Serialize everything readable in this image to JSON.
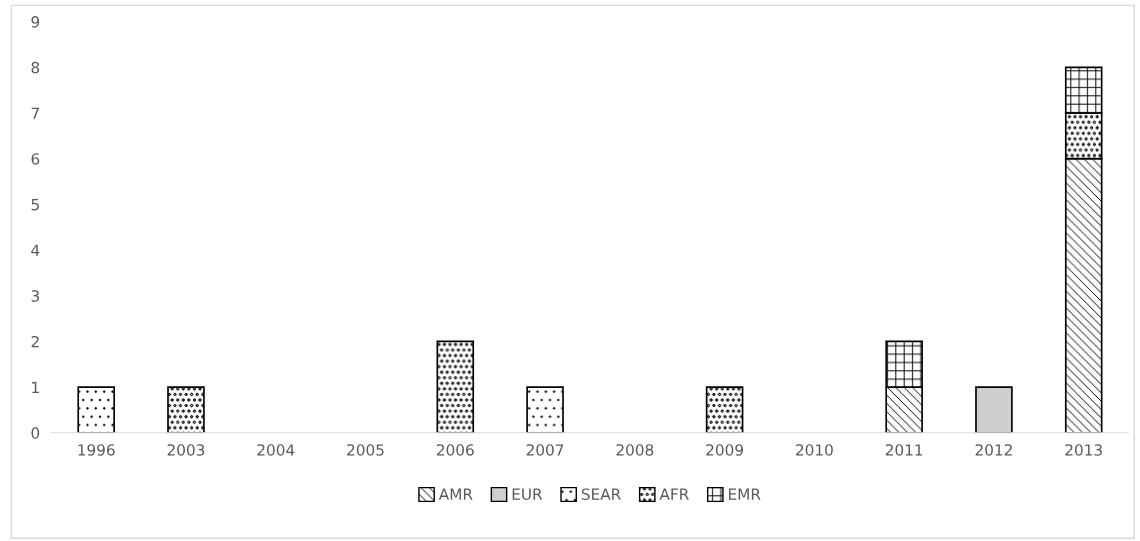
{
  "chart_data": {
    "type": "bar",
    "stacked": true,
    "categories": [
      "1996",
      "2003",
      "2004",
      "2005",
      "2006",
      "2007",
      "2008",
      "2009",
      "2010",
      "2011",
      "2012",
      "2013"
    ],
    "series": [
      {
        "name": "AMR",
        "color": "#000000",
        "values": [
          0,
          0,
          0,
          0,
          0,
          0,
          0,
          0,
          0,
          1,
          0,
          6
        ]
      },
      {
        "name": "EUR",
        "color": "#d0cece",
        "values": [
          0,
          0,
          0,
          0,
          0,
          0,
          0,
          0,
          0,
          0,
          1,
          0
        ]
      },
      {
        "name": "SEAR",
        "color": "#000000",
        "values": [
          1,
          0,
          0,
          0,
          0,
          1,
          0,
          0,
          0,
          0,
          0,
          0
        ]
      },
      {
        "name": "AFR",
        "color": "#000000",
        "values": [
          0,
          1,
          0,
          0,
          2,
          0,
          0,
          1,
          0,
          0,
          0,
          1
        ]
      },
      {
        "name": "EMR",
        "color": "#000000",
        "values": [
          0,
          0,
          0,
          0,
          0,
          0,
          0,
          0,
          0,
          1,
          0,
          1
        ]
      }
    ],
    "ylim": [
      0,
      9
    ],
    "yticks": [
      0,
      1,
      2,
      3,
      4,
      5,
      6,
      7,
      8,
      9
    ],
    "grid": false,
    "legend": "bottom"
  }
}
